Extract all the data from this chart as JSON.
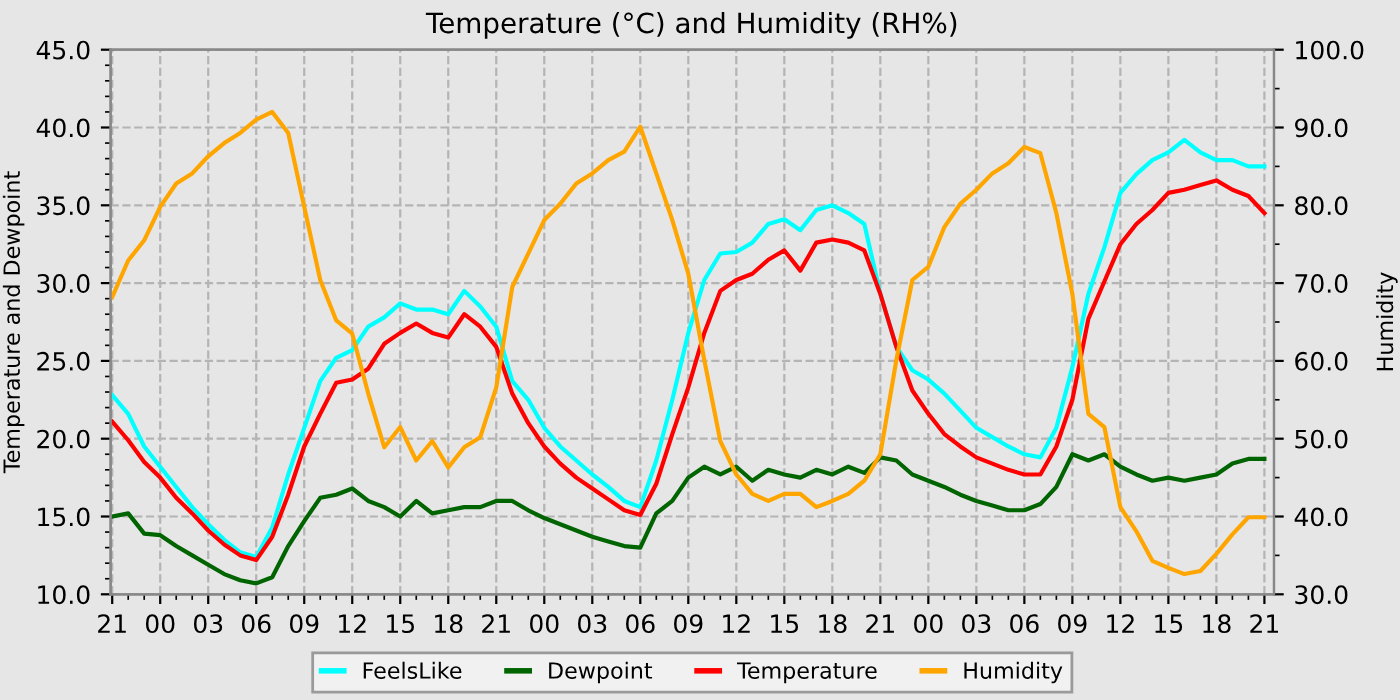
{
  "chart_data": {
    "type": "line",
    "title": "Temperature (°C) and Humidity (RH%)",
    "ylabel": "Temperature and Dewpoint",
    "y2label": "Humidity",
    "categories": [
      "21",
      null,
      null,
      "00",
      null,
      null,
      "03",
      null,
      null,
      "06",
      null,
      null,
      "09",
      null,
      null,
      "12",
      null,
      null,
      "15",
      null,
      null,
      "18",
      null,
      null,
      "21",
      null,
      null,
      "00",
      null,
      null,
      "03",
      null,
      null,
      "06",
      null,
      null,
      "09",
      null,
      null,
      "12",
      null,
      null,
      "15",
      null,
      null,
      "18",
      null,
      null,
      "21",
      null,
      null,
      "00",
      null,
      null,
      "03",
      null,
      null,
      "06",
      null,
      null,
      "09",
      null,
      null,
      "12",
      null,
      null,
      "15",
      null,
      null,
      "18",
      null,
      null,
      "21"
    ],
    "ylim": [
      10,
      45
    ],
    "yticks": [
      {
        "value": 10,
        "label": "10.0"
      },
      {
        "value": 15,
        "label": "15.0"
      },
      {
        "value": 20,
        "label": "20.0"
      },
      {
        "value": 25,
        "label": "25.0"
      },
      {
        "value": 30,
        "label": "30.0"
      },
      {
        "value": 35,
        "label": "35.0"
      },
      {
        "value": 40,
        "label": "40.0"
      },
      {
        "value": 45,
        "label": "45.0"
      }
    ],
    "y2lim": [
      30,
      100
    ],
    "y2ticks": [
      {
        "value": 30,
        "label": "30.0"
      },
      {
        "value": 40,
        "label": "40.0"
      },
      {
        "value": 50,
        "label": "50.0"
      },
      {
        "value": 60,
        "label": "60.0"
      },
      {
        "value": 70,
        "label": "70.0"
      },
      {
        "value": 80,
        "label": "80.0"
      },
      {
        "value": 90,
        "label": "90.0"
      },
      {
        "value": 100,
        "label": "100.0"
      }
    ],
    "grid": true,
    "legend": "bottom",
    "marker": "none",
    "line_style": "solid",
    "series": [
      {
        "name": "FeelsLike",
        "color": "#00ffff",
        "values": [
          22.8,
          21.6,
          19.5,
          18.2,
          16.9,
          15.6,
          14.5,
          13.5,
          12.7,
          12.4,
          14.3,
          17.7,
          20.7,
          23.7,
          25.2,
          25.7,
          27.2,
          27.8,
          28.7,
          28.3,
          28.3,
          28.0,
          29.5,
          28.5,
          27.2,
          23.7,
          22.5,
          20.7,
          19.5,
          18.6,
          17.7,
          16.9,
          16.0,
          15.6,
          18.6,
          22.5,
          26.8,
          30.2,
          31.9,
          32.0,
          32.6,
          33.8,
          34.1,
          33.4,
          34.7,
          35.0,
          34.5,
          33.8,
          29.3,
          25.9,
          24.4,
          23.8,
          22.9,
          21.8,
          20.7,
          20.1,
          19.5,
          19.0,
          18.8,
          20.7,
          24.6,
          29.3,
          32.3,
          35.8,
          37.0,
          37.9,
          38.4,
          39.2,
          38.4,
          37.9,
          37.9,
          37.5,
          37.5
        ]
      },
      {
        "name": "Dewpoint",
        "color": "#006400",
        "values": [
          15.0,
          15.2,
          13.9,
          13.8,
          13.1,
          12.5,
          11.9,
          11.3,
          10.9,
          10.7,
          11.1,
          13.1,
          14.7,
          16.2,
          16.4,
          16.8,
          16.0,
          15.6,
          15.0,
          16.0,
          15.2,
          15.4,
          15.6,
          15.6,
          16.0,
          16.0,
          15.4,
          14.9,
          14.5,
          14.1,
          13.7,
          13.4,
          13.1,
          13.0,
          15.2,
          16.0,
          17.5,
          18.2,
          17.7,
          18.2,
          17.3,
          18.0,
          17.7,
          17.5,
          18.0,
          17.7,
          18.2,
          17.8,
          18.8,
          18.6,
          17.7,
          17.3,
          16.9,
          16.4,
          16.0,
          15.7,
          15.4,
          15.4,
          15.8,
          16.9,
          19.0,
          18.6,
          19.0,
          18.2,
          17.7,
          17.3,
          17.5,
          17.3,
          17.5,
          17.7,
          18.4,
          18.7,
          18.7
        ]
      },
      {
        "name": "Temperature",
        "color": "#ff0000",
        "values": [
          21.1,
          19.9,
          18.5,
          17.5,
          16.2,
          15.2,
          14.1,
          13.2,
          12.5,
          12.2,
          13.7,
          16.4,
          19.5,
          21.6,
          23.6,
          23.8,
          24.5,
          26.1,
          26.8,
          27.4,
          26.8,
          26.5,
          28.0,
          27.2,
          25.9,
          22.9,
          21.0,
          19.5,
          18.4,
          17.5,
          16.8,
          16.1,
          15.4,
          15.1,
          17.1,
          20.3,
          23.3,
          26.8,
          29.5,
          30.2,
          30.6,
          31.5,
          32.1,
          30.8,
          32.6,
          32.8,
          32.6,
          32.1,
          29.3,
          25.9,
          23.1,
          21.6,
          20.3,
          19.5,
          18.8,
          18.4,
          18.0,
          17.7,
          17.7,
          19.5,
          22.5,
          27.7,
          30.1,
          32.5,
          33.8,
          34.7,
          35.8,
          36.0,
          36.3,
          36.6,
          36.0,
          35.6,
          34.5
        ]
      },
      {
        "name": "Humidity",
        "color": "#ffa500",
        "axis": "y2",
        "values": [
          68.2,
          72.9,
          75.5,
          79.8,
          82.8,
          84.1,
          86.3,
          88.0,
          89.3,
          91.0,
          92.0,
          89.3,
          79.8,
          70.4,
          65.2,
          63.5,
          55.8,
          48.9,
          51.5,
          47.2,
          49.7,
          46.3,
          48.9,
          50.2,
          56.6,
          69.5,
          73.8,
          78.1,
          80.2,
          82.8,
          84.1,
          85.8,
          86.9,
          90.1,
          84.1,
          78.1,
          71.2,
          60.1,
          49.7,
          45.4,
          42.9,
          42.0,
          42.9,
          42.9,
          41.2,
          42.0,
          42.9,
          44.6,
          48.0,
          60.1,
          70.4,
          72.1,
          77.2,
          80.2,
          82.0,
          84.1,
          85.4,
          87.5,
          86.7,
          79.0,
          68.6,
          53.2,
          51.5,
          41.2,
          38.1,
          34.3,
          33.4,
          32.6,
          33.0,
          35.2,
          37.7,
          39.9,
          39.9
        ]
      }
    ]
  }
}
